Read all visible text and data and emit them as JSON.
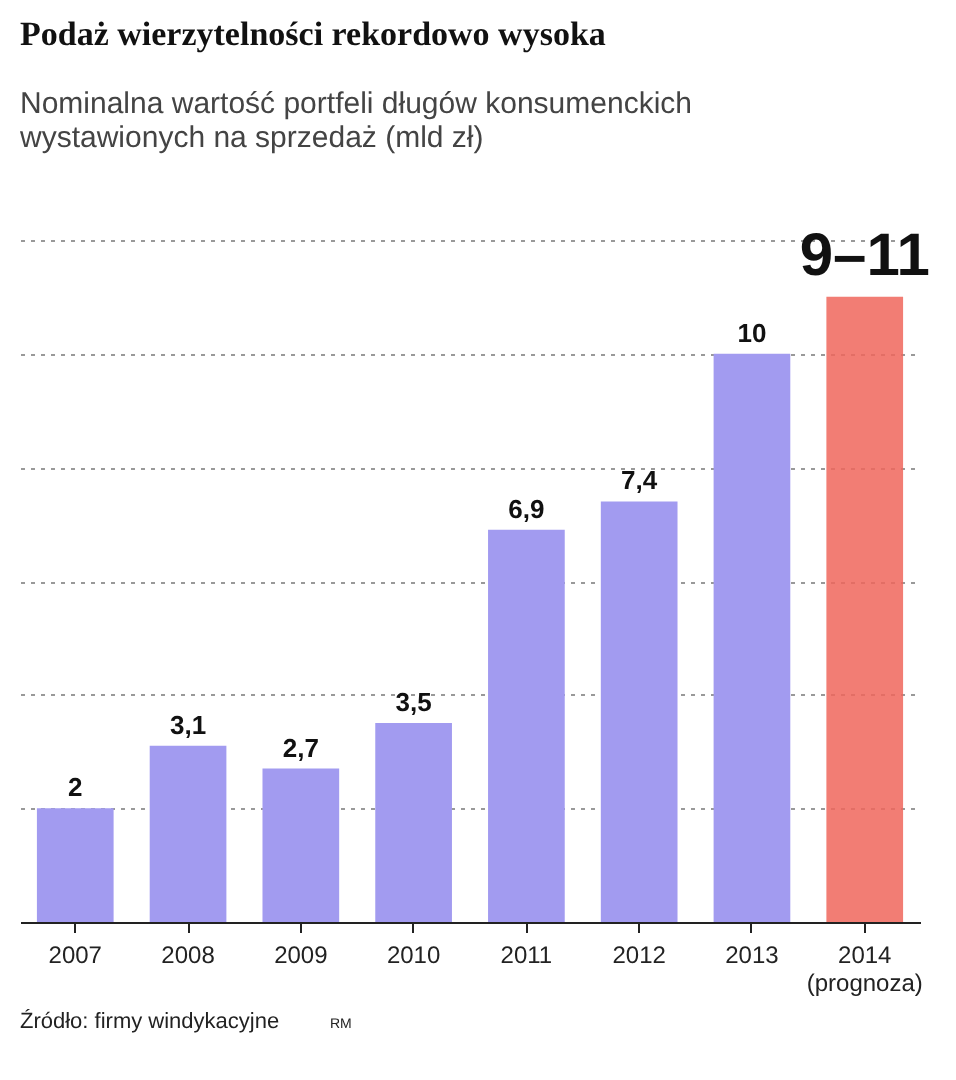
{
  "chart_data": {
    "type": "bar",
    "title": "Podaż wierzytelności rekordowo wysoka",
    "subtitle": "Nominalna wartość portfeli długów konsumenckich wystawionych na sprzedaż (mld zł)",
    "categories": [
      "2007",
      "2008",
      "2009",
      "2010",
      "2011",
      "2012",
      "2013",
      "2014\n(prognoza)"
    ],
    "series": [
      {
        "color": "#a29bf0",
        "values": [
          2,
          3.1,
          2.7,
          3.5,
          6.9,
          7.4,
          10,
          null
        ],
        "value_labels": [
          "2",
          "3,1",
          "2,7",
          "3,5",
          "6,9",
          "7,4",
          "10",
          null
        ]
      },
      {
        "color": "#f0665c",
        "values": [
          null,
          null,
          null,
          null,
          null,
          null,
          null,
          11
        ],
        "value_labels": [
          null,
          null,
          null,
          null,
          null,
          null,
          null,
          "9–11"
        ]
      }
    ],
    "ylim": [
      0,
      12
    ],
    "yticks": [
      {
        "value": 0,
        "label": null
      },
      {
        "value": 2,
        "label": null
      },
      {
        "value": 4,
        "label": null
      },
      {
        "value": 6,
        "label": null
      },
      {
        "value": 8,
        "label": null
      },
      {
        "value": 10,
        "label": null
      },
      {
        "value": 12,
        "label": null
      }
    ],
    "grid": "y",
    "tick_labels": "x",
    "annotations": [
      "Źródło: firmy windykacyjne",
      "RM"
    ]
  }
}
